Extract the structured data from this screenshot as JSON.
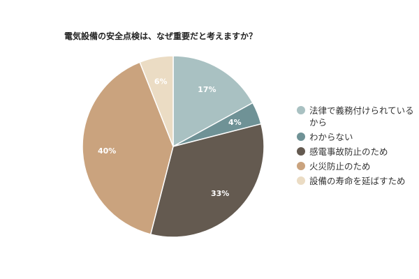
{
  "chart_data": {
    "type": "pie",
    "title": "電気設備の安全点検は、なぜ重要だと考えますか？",
    "categories": [
      "法律で義務付けられているから",
      "わからない",
      "感電事故防止のため",
      "火災防止のため",
      "設備の寿命を延ばすため"
    ],
    "values": [
      17,
      4,
      33,
      40,
      6
    ],
    "data_labels": [
      "17%",
      "4%",
      "33%",
      "40%",
      "6%"
    ],
    "colors": [
      "#a9c1c2",
      "#6f9296",
      "#645a50",
      "#caa37e",
      "#ebdcc4"
    ],
    "legend_position": "right"
  }
}
